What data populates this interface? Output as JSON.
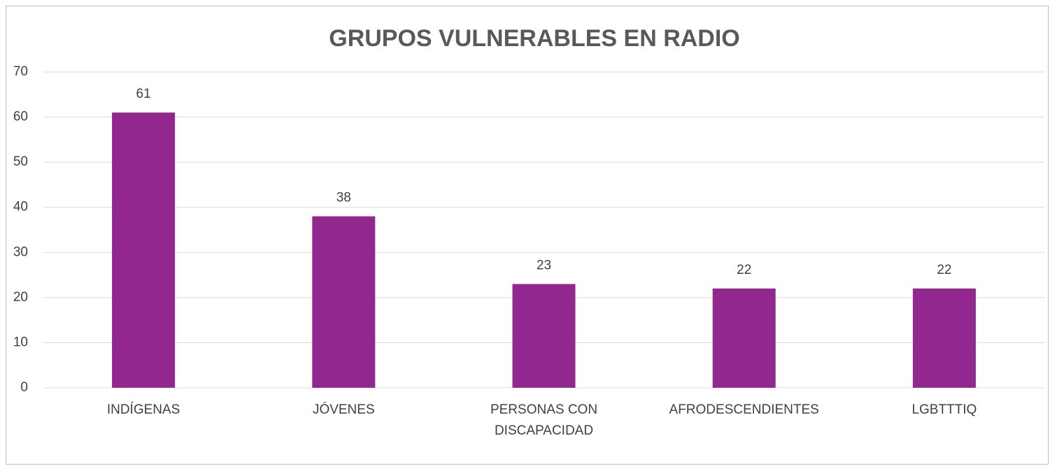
{
  "chart_data": {
    "type": "bar",
    "title": "GRUPOS VULNERABLES EN RADIO",
    "categories": [
      "INDÍGENAS",
      "JÓVENES",
      "PERSONAS CON DISCAPACIDAD",
      "AFRODESCENDIENTES",
      "LGBTTTIQ"
    ],
    "values": [
      61,
      38,
      23,
      22,
      22
    ],
    "color": "#92278f",
    "ylim": [
      0,
      70
    ],
    "yticks": [
      0,
      10,
      20,
      30,
      40,
      50,
      60,
      70
    ],
    "grid": true
  }
}
